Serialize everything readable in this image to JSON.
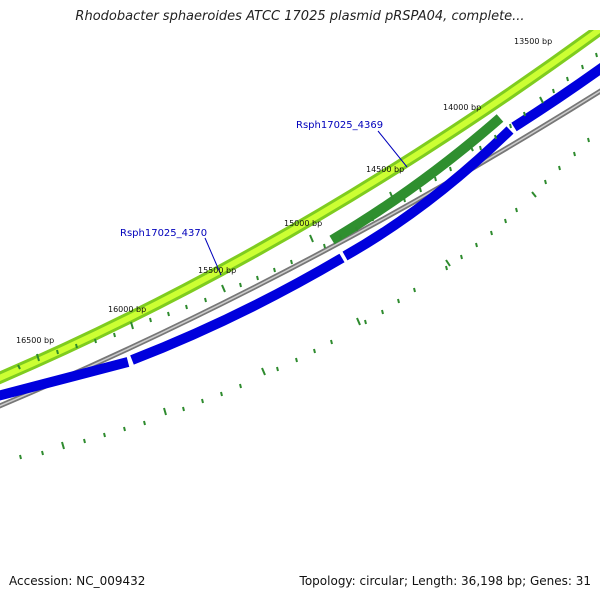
{
  "title": "Rhodobacter sphaeroides ATCC 17025 plasmid pRSPA04, complete...",
  "footer": {
    "accession": "Accession: NC_009432",
    "summary": "Topology: circular; Length: 36,198 bp; Genes: 31"
  },
  "colors": {
    "outer_ring": "#7fcc1f",
    "outer_ring_fill": "#ccff33",
    "highlight_gene": "#2f8f2f",
    "cds_ring": "#0000dd",
    "backbone": "#777777",
    "tick": "#2e8b2e",
    "label_line": "#0000bb"
  },
  "bp_labels": [
    "13500 bp",
    "14000 bp",
    "14500 bp",
    "15000 bp",
    "15500 bp",
    "16000 bp",
    "16500 bp"
  ],
  "genes": [
    {
      "label": "Rsph17025_4369"
    },
    {
      "label": "Rsph17025_4370"
    }
  ]
}
